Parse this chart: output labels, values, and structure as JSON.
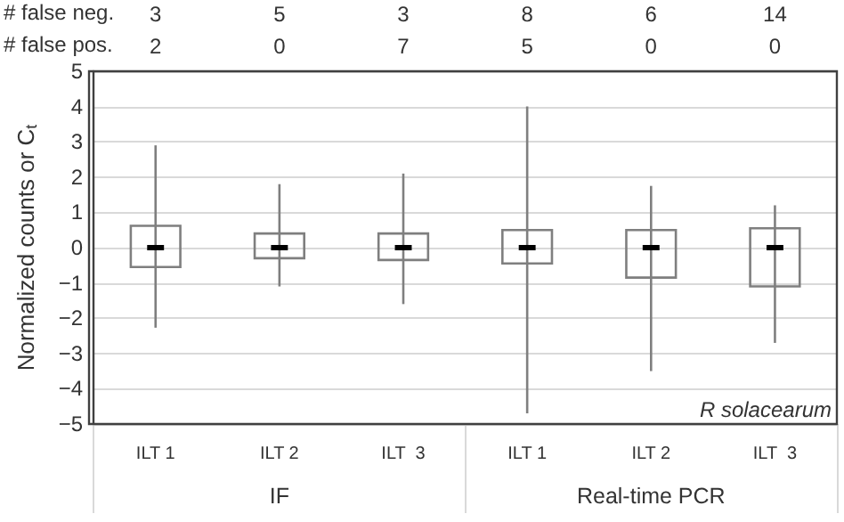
{
  "chart_data": {
    "type": "box",
    "ylabel": "Normalized counts or C$_{t}$",
    "categories": [
      "ILT 1",
      "ILT 2",
      "ILT  3",
      "ILT 1",
      "ILT 2",
      "ILT  3"
    ],
    "series": [
      {
        "color": "#7f7f7f",
        "boxes": [
          {
            "low": -2.27,
            "q1": -0.55,
            "median": 0,
            "q3": 0.62,
            "high": 2.9
          },
          {
            "low": -1.1,
            "q1": -0.3,
            "median": 0,
            "q3": 0.4,
            "high": 1.8
          },
          {
            "low": -1.6,
            "q1": -0.35,
            "median": 0,
            "q3": 0.4,
            "high": 2.1
          },
          {
            "low": -4.7,
            "q1": -0.45,
            "median": 0,
            "q3": 0.5,
            "high": 4.0
          },
          {
            "low": -3.5,
            "q1": -0.85,
            "median": 0,
            "q3": 0.5,
            "high": 1.75
          },
          {
            "low": -2.7,
            "q1": -1.1,
            "median": 0,
            "q3": 0.55,
            "high": 1.2
          }
        ]
      }
    ],
    "ylim": [
      -5,
      5
    ],
    "yticks": [
      -5,
      -4,
      -3,
      -2,
      -1,
      0,
      1,
      2,
      3,
      4,
      5
    ],
    "grid": "y",
    "annotations": [
      "# false neg.",
      "3",
      "5",
      "3",
      "8",
      "6",
      "14",
      "# false pos.",
      "2",
      "0",
      "7",
      "5",
      "0",
      "0",
      "IF",
      "Real-time PCR",
      "R solacearum"
    ]
  }
}
